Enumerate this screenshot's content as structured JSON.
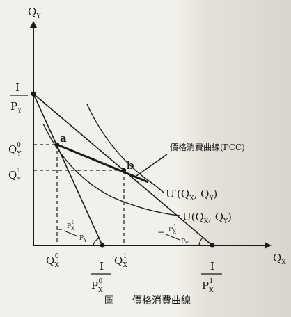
{
  "axes": {
    "y_label": "Q",
    "y_label_sub": "Y",
    "x_label": "Q",
    "x_label_sub": "X"
  },
  "intercepts": {
    "y_numer": "I",
    "y_denom": "P",
    "y_denom_sub": "Y",
    "x0_numer": "I",
    "x0_denom": "P",
    "x0_denom_sup": "0",
    "x0_denom_sub": "X",
    "x1_numer": "I",
    "x1_denom": "P",
    "x1_denom_sup": "1",
    "x1_denom_sub": "X"
  },
  "points": {
    "a": "a",
    "b": "b",
    "qy0": "Q",
    "qy0_sub": "Y",
    "qy0_sup": "0",
    "qy1": "Q",
    "qy1_sub": "Y",
    "qy1_sup": "1",
    "qx0": "Q",
    "qx0_sub": "X",
    "qx0_sup": "0",
    "qx1": "Q",
    "qx1_sub": "X",
    "qx1_sup": "1"
  },
  "curves": {
    "pcc_label": "價格消費曲線(PCC)",
    "u_prime_label": "U′(Q",
    "u_prime_mid": ", Q",
    "u_prime_end": ")",
    "u_label": "U(Q",
    "u_mid": ", Q",
    "u_end": ")",
    "sub_x": "X",
    "sub_y": "Y"
  },
  "slopes": {
    "s0_minus": "−",
    "s0_num": "P",
    "s0_num_sup": "0",
    "s0_num_sub": "X",
    "s0_den": "P",
    "s0_den_sub": "Y",
    "s1_minus": "−",
    "s1_num": "P",
    "s1_num_sup": "1",
    "s1_num_sub": "X",
    "s1_den": "P",
    "s1_den_sub": "Y"
  },
  "caption": {
    "prefix": "圖",
    "title": "價格消費曲線"
  }
}
